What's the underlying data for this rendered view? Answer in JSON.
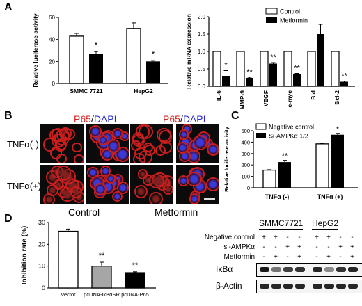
{
  "panels": {
    "A": "A",
    "B": "B",
    "C": "C",
    "D": "D"
  },
  "a1": {
    "ylabel": "Relative luciferase activity",
    "yticks": [
      "0",
      "20",
      "40",
      "60"
    ],
    "groups": [
      {
        "label": "SMMC 7721",
        "control": 43,
        "control_err": 2.5,
        "metformin": 27,
        "metformin_err": 2,
        "sig": "*"
      },
      {
        "label": "HepG2",
        "control": 50,
        "control_err": 5,
        "metformin": 20,
        "metformin_err": 0.8,
        "sig": "*"
      }
    ],
    "ylim": [
      0,
      60
    ]
  },
  "a2": {
    "ylabel": "Relative mRNA expression",
    "yticks": [
      "0.0",
      "0.5",
      "1.0",
      "1.5",
      "2.0"
    ],
    "legend": [
      "Control",
      "Metformin"
    ],
    "categories": [
      "IL-6",
      "MMP-9",
      "VEGF",
      "c-myc",
      "Bid",
      "Bcl-2"
    ],
    "control": [
      1,
      1,
      1,
      1,
      1,
      1
    ],
    "metformin": [
      0.3,
      0.24,
      0.65,
      0.35,
      1.5,
      0.13
    ],
    "metformin_err": [
      0.15,
      0.02,
      0.03,
      0.02,
      0.28,
      0.02
    ],
    "sig": [
      "*",
      "**",
      "**",
      "**",
      "",
      "**"
    ],
    "ylim": [
      0,
      2
    ]
  },
  "b": {
    "title_p65": "P65",
    "title_sep": "/",
    "title_dapi": "DAPI",
    "rows": [
      "TNFα(-)",
      "TNFα(+)"
    ],
    "cols": [
      "Control",
      "Metformin"
    ]
  },
  "c": {
    "ylabel": "Relative luciferase activity",
    "yticks": [
      "0",
      "100",
      "200",
      "300",
      "400",
      "500"
    ],
    "legend": [
      "Negative control",
      "Si-AMPKα 1/2"
    ],
    "groups": [
      {
        "label": "TNFα (-)",
        "neg": 155,
        "neg_err": 4,
        "si": 225,
        "si_err": 15,
        "sig": "**"
      },
      {
        "label": "TNFα (+)",
        "neg": 385,
        "neg_err": 3,
        "si": 465,
        "si_err": 12,
        "sig": "*"
      }
    ],
    "ylim": [
      0,
      500
    ]
  },
  "d1": {
    "ylabel": "Inhibition rate (%)",
    "yticks": [
      "0",
      "10",
      "20",
      "30"
    ],
    "bars": [
      {
        "label": "Vector",
        "value": 26,
        "err": 1,
        "sig": "",
        "color": "#ffffff"
      },
      {
        "label": "pcDNA-IκBαSR",
        "value": 10,
        "err": 1.8,
        "sig": "**",
        "color": "#a6a6a6"
      },
      {
        "label": "pcDNA-P65",
        "value": 7,
        "err": 0.4,
        "sig": "**",
        "color": "#000000"
      }
    ],
    "ylim": [
      0,
      30
    ]
  },
  "d2": {
    "cell_lines": [
      "SMMC7721",
      "HepG2"
    ],
    "conditions": [
      {
        "label": "Negative control",
        "marks": [
          "+",
          "+",
          "-",
          "-",
          "+",
          "+",
          "-",
          "-"
        ]
      },
      {
        "label": "si-AMPKα",
        "marks": [
          "-",
          "-",
          "+",
          "+",
          "-",
          "-",
          "+",
          "+"
        ]
      },
      {
        "label": "Metformin",
        "marks": [
          "-",
          "+",
          "-",
          "+",
          "-",
          "+",
          "-",
          "+"
        ]
      }
    ],
    "blots": [
      {
        "label": "IκBα",
        "intensity": [
          0.9,
          0.55,
          0.75,
          0.8,
          0.85,
          0.45,
          0.8,
          0.85
        ]
      },
      {
        "label": "β-Actin",
        "intensity": [
          0.85,
          0.85,
          0.85,
          0.85,
          0.85,
          0.85,
          0.85,
          0.85
        ]
      }
    ]
  }
}
